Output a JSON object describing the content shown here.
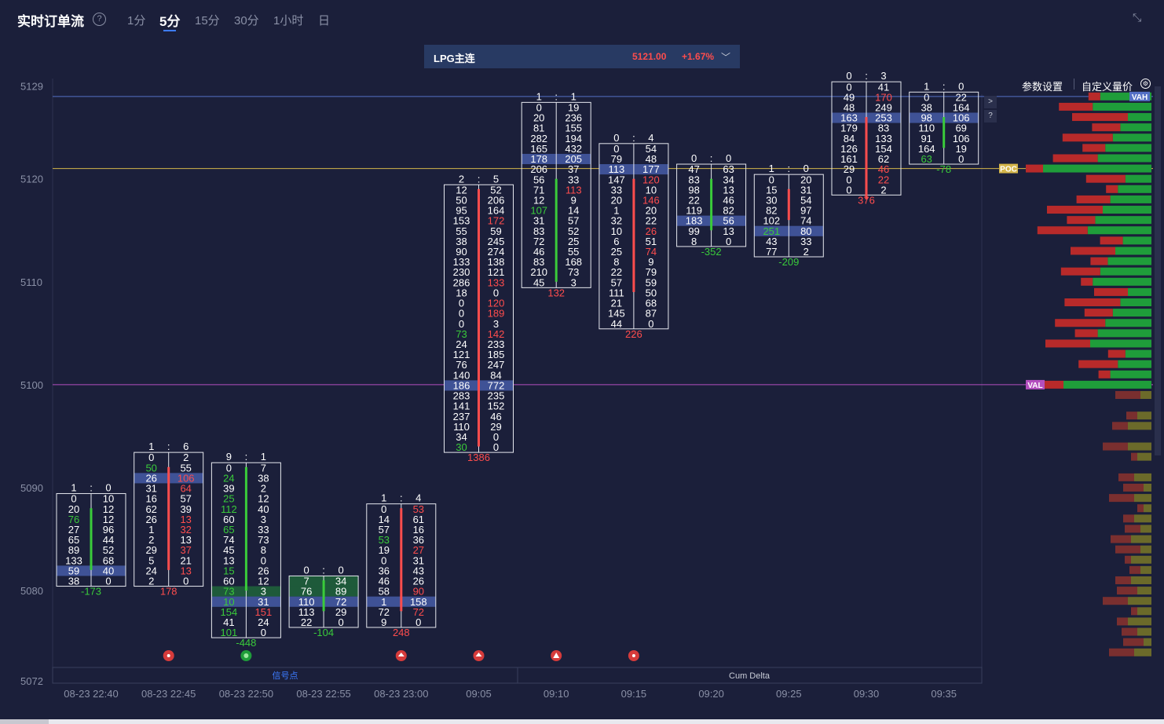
{
  "header": {
    "title": "实时订单流",
    "help_icon": "?",
    "timeframes": [
      {
        "label": "1分",
        "active": false
      },
      {
        "label": "5分",
        "active": true
      },
      {
        "label": "15分",
        "active": false
      },
      {
        "label": "30分",
        "active": false
      },
      {
        "label": "1小时",
        "active": false
      },
      {
        "label": "日",
        "active": false
      }
    ],
    "collapse_icon": "⤡"
  },
  "symbol_bar": {
    "name": "LPG主连",
    "price": "5121.00",
    "change": "+1.67%",
    "caret": "﹀"
  },
  "toolbar": {
    "param_settings": "参数设置",
    "custom_price": "自定义量价",
    "gear": "⚙"
  },
  "side_buttons": {
    "expand": ">",
    "question": "?"
  },
  "bottom_panel": {
    "signal_label": "信号点",
    "delta_label": "Cum Delta"
  },
  "colors": {
    "background": "#1b1f3a",
    "bid": "#ff4d4d",
    "ask": "#3acb3a",
    "vah": "#5470c6",
    "poc": "#d4b54a",
    "val": "#b44fbf",
    "highlight": "#3f5296"
  },
  "chart_data": {
    "type": "footprint",
    "ylim": [
      5072,
      5131
    ],
    "y_ticks": [
      5072,
      5080,
      5090,
      5100,
      5110,
      5120,
      5129
    ],
    "levels": {
      "VAH": 5128,
      "POC": 5121,
      "VAL": 5100
    },
    "level_labels": {
      "VAH": "VAH",
      "POC": "POC",
      "VAL": "VAL"
    },
    "x_labels": [
      "08-23 22:40",
      "08-23 22:45",
      "08-23 22:50",
      "08-23 22:55",
      "08-23 23:00",
      "09:05",
      "09:10",
      "09:15",
      "09:20",
      "09:25",
      "09:30",
      "09:35"
    ],
    "candles": [
      {
        "time": "08-23 22:40",
        "header": [
          "1",
          "0"
        ],
        "top": 5089,
        "bottom": 5080,
        "delta": "-173",
        "hl": 5082,
        "bar": {
          "c": "g",
          "from": 5088,
          "to": 5082
        },
        "bid": [
          "0",
          "20",
          "76",
          "27",
          "65",
          "89",
          "133",
          "59",
          "38"
        ],
        "ask": [
          "10",
          "12",
          "12",
          "96",
          "44",
          "52",
          "68",
          "40",
          "0"
        ],
        "bidc": {
          "2": "g"
        },
        "askc": {}
      },
      {
        "time": "08-23 22:45",
        "header": [
          "1",
          "6"
        ],
        "top": 5093,
        "bottom": 5081,
        "delta": "178",
        "hl": 5091,
        "bar": {
          "c": "r",
          "from": 5092,
          "to": 5082
        },
        "bid": [
          "0",
          "50",
          "26",
          "31",
          "16",
          "62",
          "26",
          "1",
          "2",
          "29",
          "5",
          "24",
          "2"
        ],
        "ask": [
          "2",
          "55",
          "106",
          "64",
          "57",
          "39",
          "13",
          "32",
          "13",
          "37",
          "21",
          "13",
          "0"
        ],
        "bidc": {
          "1": "g"
        },
        "askc": {
          "2": "r",
          "3": "r",
          "6": "r",
          "7": "r",
          "9": "r",
          "11": "r"
        }
      },
      {
        "time": "08-23 22:50",
        "header": [
          "9",
          "1"
        ],
        "top": 5092,
        "bottom": 5077,
        "delta": "-448",
        "hl": 5079,
        "bar": {
          "c": "g",
          "from": 5092,
          "to": 5080
        },
        "bid": [
          "0",
          "24",
          "39",
          "25",
          "112",
          "60",
          "65",
          "74",
          "45",
          "13",
          "15",
          "60",
          "73",
          "10",
          "154",
          "41",
          "101"
        ],
        "ask": [
          "7",
          "38",
          "2",
          "12",
          "40",
          "3",
          "33",
          "73",
          "8",
          "0",
          "26",
          "12",
          "3",
          "31",
          "151",
          "24",
          "0"
        ],
        "bidc": {
          "1": "g",
          "3": "g",
          "4": "g",
          "6": "g",
          "10": "g",
          "12": "g",
          "13": "g",
          "14": "g",
          "16": "g"
        },
        "askc": {
          "14": "r"
        },
        "greenRows": [
          12,
          13
        ]
      },
      {
        "time": "08-23 22:55",
        "header": [
          "0",
          "0"
        ],
        "top": 5081,
        "bottom": 5077,
        "delta": "-104",
        "hl": 5079,
        "bar": {
          "c": "g",
          "from": 5081,
          "to": 5078
        },
        "bid": [
          "7",
          "76",
          "110",
          "113",
          "22"
        ],
        "ask": [
          "34",
          "89",
          "72",
          "29",
          "0"
        ],
        "bidc": {},
        "askc": {},
        "greenRows": [
          0,
          1
        ]
      },
      {
        "time": "08-23 23:00",
        "header": [
          "1",
          "4"
        ],
        "top": 5088,
        "bottom": 5077,
        "delta": "248",
        "hl": 5079,
        "bar": {
          "c": "r",
          "from": 5088,
          "to": 5078
        },
        "bid": [
          "0",
          "14",
          "57",
          "53",
          "19",
          "0",
          "36",
          "46",
          "58",
          "1",
          "72",
          "9"
        ],
        "ask": [
          "53",
          "61",
          "16",
          "36",
          "27",
          "31",
          "43",
          "26",
          "90",
          "158",
          "72",
          "0"
        ],
        "bidc": {
          "3": "g"
        },
        "askc": {
          "0": "r",
          "4": "r",
          "8": "r",
          "10": "r"
        }
      },
      {
        "time": "09:05",
        "header": [
          "2",
          "5"
        ],
        "top": 5119,
        "bottom": 5093,
        "delta": "1386",
        "hl": 5100,
        "bar": {
          "c": "r",
          "from": 5119,
          "to": 5094
        },
        "bid": [
          "12",
          "50",
          "95",
          "153",
          "55",
          "38",
          "90",
          "133",
          "230",
          "286",
          "18",
          "0",
          "0",
          "0",
          "73",
          "24",
          "121",
          "76",
          "140",
          "186",
          "283",
          "141",
          "237",
          "110",
          "34",
          "30"
        ],
        "ask": [
          "52",
          "206",
          "164",
          "172",
          "59",
          "245",
          "274",
          "138",
          "121",
          "133",
          "0",
          "120",
          "189",
          "3",
          "142",
          "233",
          "185",
          "247",
          "84",
          "772",
          "235",
          "152",
          "46",
          "29",
          "0",
          "0"
        ],
        "bidc": {
          "14": "g",
          "25": "g"
        },
        "askc": {
          "3": "r",
          "9": "r",
          "11": "r",
          "12": "r",
          "14": "r"
        }
      },
      {
        "time": "09:10",
        "header": [
          "1",
          "1"
        ],
        "top": 5127,
        "bottom": 5109,
        "delta": "132",
        "hl": 5122,
        "bar": {
          "c": "g",
          "from": 5120,
          "to": 5110
        },
        "bid": [
          "0",
          "20",
          "81",
          "282",
          "165",
          "178",
          "206",
          "56",
          "71",
          "12",
          "107",
          "31",
          "83",
          "72",
          "46",
          "83",
          "210",
          "45"
        ],
        "ask": [
          "19",
          "236",
          "155",
          "194",
          "432",
          "205",
          "37",
          "33",
          "113",
          "9",
          "14",
          "57",
          "52",
          "25",
          "55",
          "168",
          "73",
          "3"
        ],
        "bidc": {
          "10": "g"
        },
        "askc": {
          "8": "r"
        }
      },
      {
        "time": "09:15",
        "header": [
          "0",
          "4"
        ],
        "top": 5123,
        "bottom": 5105,
        "delta": "226",
        "hl": 5121,
        "bar": {
          "c": "r",
          "from": 5120,
          "to": 5109
        },
        "bid": [
          "0",
          "79",
          "113",
          "147",
          "33",
          "20",
          "1",
          "32",
          "10",
          "6",
          "25",
          "8",
          "22",
          "57",
          "111",
          "21",
          "145",
          "44"
        ],
        "ask": [
          "54",
          "48",
          "177",
          "120",
          "10",
          "146",
          "20",
          "22",
          "26",
          "51",
          "74",
          "9",
          "79",
          "59",
          "50",
          "68",
          "87",
          "0"
        ],
        "bidc": {},
        "askc": {
          "3": "r",
          "5": "r",
          "8": "r",
          "10": "r"
        }
      },
      {
        "time": "09:20",
        "header": [
          "0",
          "0"
        ],
        "top": 5121,
        "bottom": 5115,
        "delta": "-352",
        "hl": 5116,
        "bar": {
          "c": "g",
          "from": 5120,
          "to": 5115
        },
        "bid": [
          "47",
          "83",
          "98",
          "22",
          "119",
          "183",
          "99",
          "8"
        ],
        "ask": [
          "63",
          "34",
          "13",
          "46",
          "82",
          "56",
          "13",
          "0"
        ],
        "bidc": {},
        "askc": {}
      },
      {
        "time": "09:25",
        "header": [
          "1",
          "0"
        ],
        "top": 5120,
        "bottom": 5113,
        "delta": "-209",
        "hl": 5115,
        "bar": {
          "c": "r",
          "from": 5119,
          "to": 5116
        },
        "bid": [
          "0",
          "15",
          "30",
          "82",
          "102",
          "251",
          "43",
          "77"
        ],
        "ask": [
          "20",
          "31",
          "54",
          "97",
          "74",
          "80",
          "33",
          "2"
        ],
        "bidc": {
          "5": "g"
        },
        "askc": {}
      },
      {
        "time": "09:30",
        "header": [
          "0",
          "3"
        ],
        "top": 5129,
        "bottom": 5118,
        "delta": "376",
        "hl": 5126,
        "bar": {
          "c": "r",
          "from": 5126,
          "to": 5118
        },
        "bid": [
          "0",
          "49",
          "48",
          "163",
          "179",
          "84",
          "126",
          "161",
          "29",
          "0",
          "0"
        ],
        "ask": [
          "41",
          "170",
          "249",
          "253",
          "83",
          "133",
          "154",
          "62",
          "46",
          "22",
          "2"
        ],
        "bidc": {},
        "askc": {
          "1": "r",
          "8": "r",
          "9": "r"
        }
      },
      {
        "time": "09:35",
        "header": [
          "1",
          "0"
        ],
        "top": 5128,
        "bottom": 5122,
        "delta": "-78",
        "hl": 5126,
        "bar": {
          "c": "g",
          "from": 5126,
          "to": 5123
        },
        "bid": [
          "0",
          "38",
          "98",
          "110",
          "91",
          "164",
          "63"
        ],
        "ask": [
          "22",
          "164",
          "106",
          "69",
          "106",
          "19",
          "0"
        ],
        "bidc": {
          "6": "g"
        },
        "askc": {}
      }
    ],
    "signals": [
      {
        "candle": 1,
        "type": "red-dot"
      },
      {
        "candle": 2,
        "type": "green-dot"
      },
      {
        "candle": 4,
        "type": "red-up"
      },
      {
        "candle": 5,
        "type": "red-up"
      },
      {
        "candle": 6,
        "type": "red-tri"
      },
      {
        "candle": 7,
        "type": "red-dot"
      }
    ]
  }
}
